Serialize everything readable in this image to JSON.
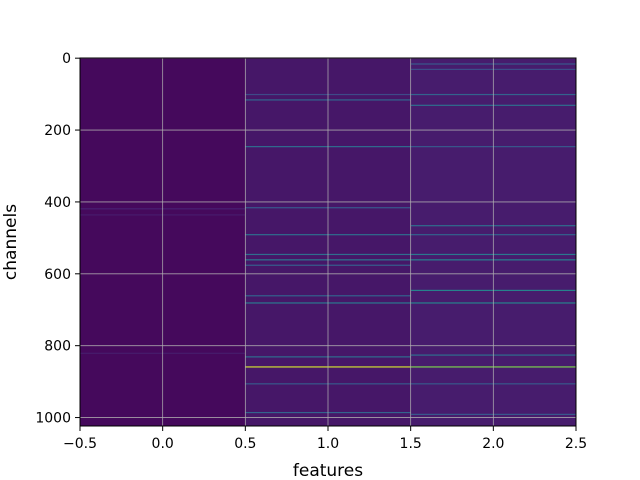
{
  "chart_data": {
    "type": "heatmap",
    "title": "",
    "xlabel": "features",
    "ylabel": "channels",
    "xlim": [
      -0.5,
      2.5
    ],
    "ylim": [
      1023.5,
      -0.5
    ],
    "xticks": [
      -0.5,
      0.0,
      0.5,
      1.0,
      1.5,
      2.0,
      2.5
    ],
    "xtick_labels": [
      "−0.5",
      "0.0",
      "0.5",
      "1.0",
      "1.5",
      "2.0",
      "2.5"
    ],
    "yticks": [
      0,
      200,
      400,
      600,
      800,
      1000
    ],
    "ytick_labels": [
      "0",
      "200",
      "400",
      "600",
      "800",
      "1000"
    ],
    "grid": true,
    "colormap": "viridis",
    "columns": [
      {
        "x": 0,
        "base_value": 0.03,
        "highlight_rows": [
          {
            "y": 418,
            "value": 0.12
          },
          {
            "y": 435,
            "value": 0.1
          },
          {
            "y": 820,
            "value": 0.1
          }
        ]
      },
      {
        "x": 1,
        "base_value": 0.08,
        "highlight_rows": [
          {
            "y": 100,
            "value": 0.28
          },
          {
            "y": 115,
            "value": 0.42
          },
          {
            "y": 245,
            "value": 0.45
          },
          {
            "y": 415,
            "value": 0.35
          },
          {
            "y": 490,
            "value": 0.45
          },
          {
            "y": 545,
            "value": 0.45
          },
          {
            "y": 560,
            "value": 0.5
          },
          {
            "y": 575,
            "value": 0.38
          },
          {
            "y": 660,
            "value": 0.4
          },
          {
            "y": 680,
            "value": 0.5
          },
          {
            "y": 830,
            "value": 0.45
          },
          {
            "y": 858,
            "value": 0.95
          },
          {
            "y": 905,
            "value": 0.35
          },
          {
            "y": 985,
            "value": 0.4
          }
        ]
      },
      {
        "x": 2,
        "base_value": 0.1,
        "highlight_rows": [
          {
            "y": 15,
            "value": 0.35
          },
          {
            "y": 30,
            "value": 0.3
          },
          {
            "y": 100,
            "value": 0.4
          },
          {
            "y": 130,
            "value": 0.45
          },
          {
            "y": 245,
            "value": 0.35
          },
          {
            "y": 465,
            "value": 0.45
          },
          {
            "y": 490,
            "value": 0.4
          },
          {
            "y": 545,
            "value": 0.5
          },
          {
            "y": 560,
            "value": 0.55
          },
          {
            "y": 645,
            "value": 0.55
          },
          {
            "y": 680,
            "value": 0.55
          },
          {
            "y": 825,
            "value": 0.45
          },
          {
            "y": 858,
            "value": 0.85
          },
          {
            "y": 905,
            "value": 0.35
          },
          {
            "y": 990,
            "value": 0.35
          }
        ]
      }
    ]
  }
}
